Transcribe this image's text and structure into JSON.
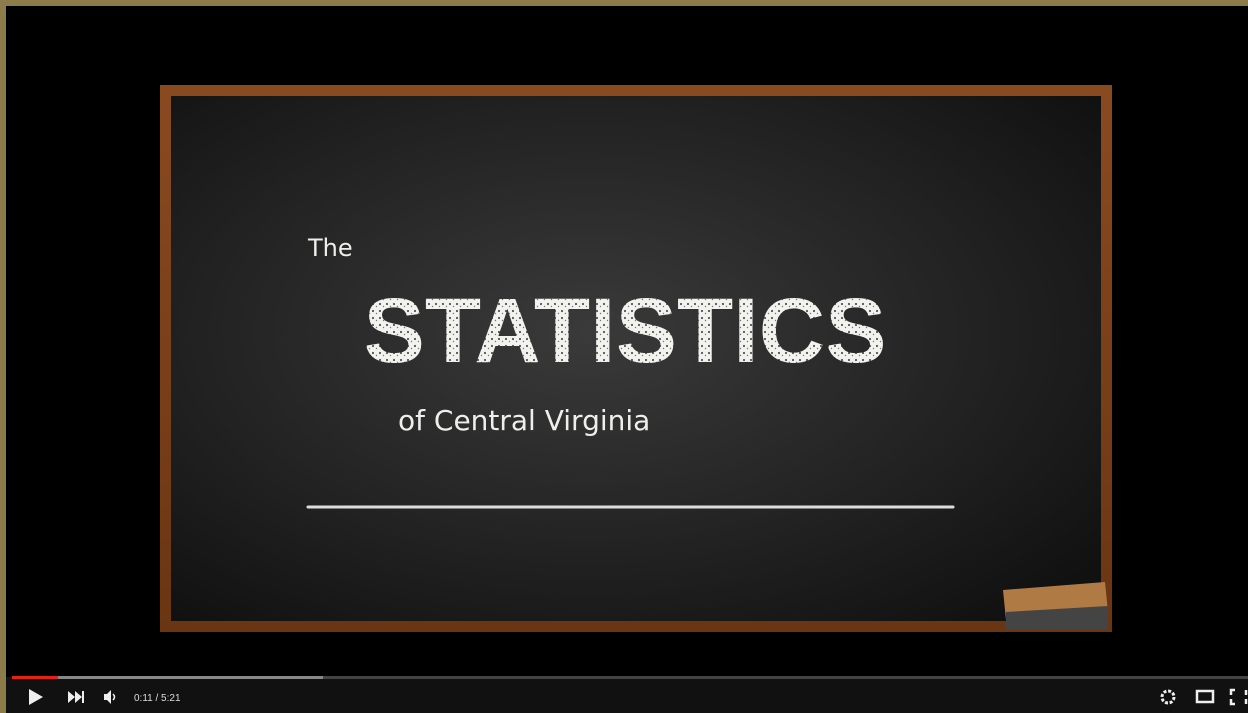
{
  "video": {
    "board": {
      "line1": "The",
      "line2": "STATISTICS",
      "line3": "of Central Virginia"
    },
    "controls": {
      "time": "0:11 / 5:21"
    }
  }
}
